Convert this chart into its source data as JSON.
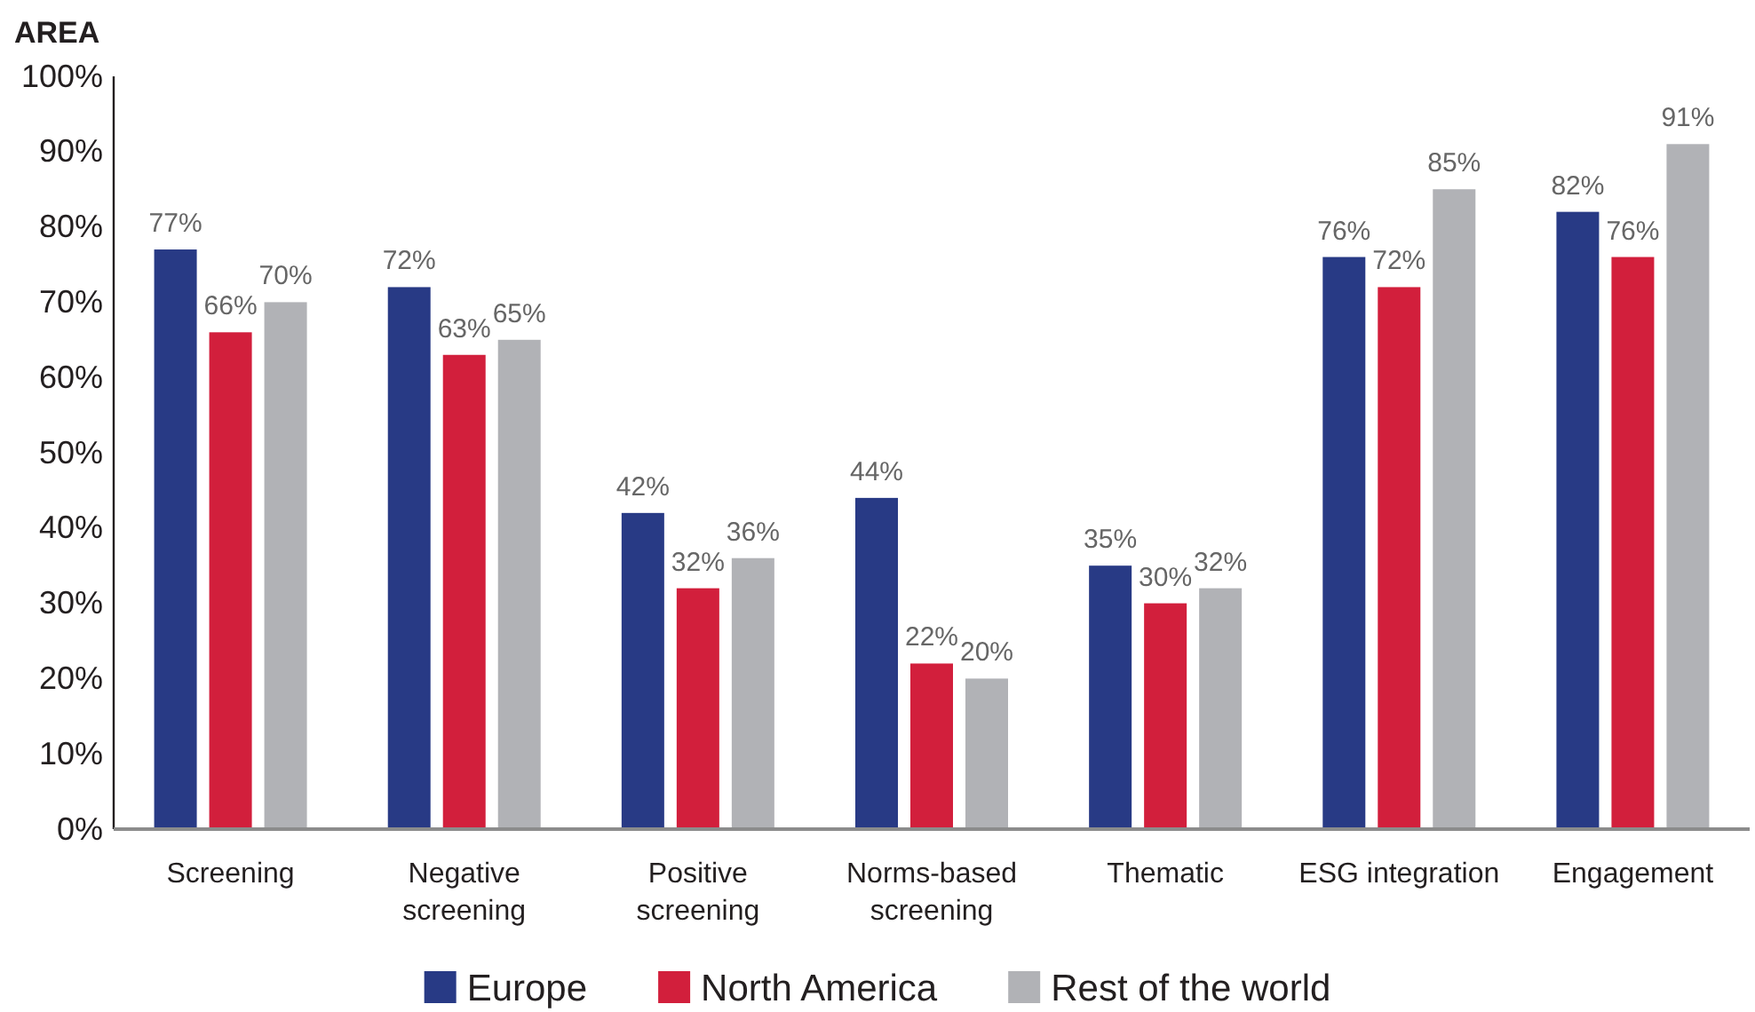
{
  "chart_data": {
    "type": "bar",
    "ylabel": "AREA",
    "categories": [
      "Screening",
      "Negative screening",
      "Positive screening",
      "Norms-based screening",
      "Thematic",
      "ESG integration",
      "Engagement"
    ],
    "series": [
      {
        "name": "Europe",
        "color": "#283a85",
        "values": [
          77,
          72,
          42,
          44,
          35,
          76,
          82
        ],
        "value_labels": [
          "77%",
          "72%",
          "42%",
          "44%",
          "35%",
          "76%",
          "82%"
        ]
      },
      {
        "name": "North America",
        "color": "#d21f3c",
        "values": [
          66,
          63,
          32,
          22,
          30,
          72,
          76
        ],
        "value_labels": [
          "66%",
          "63%",
          "32%",
          "22%",
          "30%",
          "72%",
          "76%"
        ]
      },
      {
        "name": "Rest of the world",
        "color": "#b1b2b6",
        "values": [
          70,
          65,
          36,
          20,
          32,
          85,
          91
        ],
        "value_labels": [
          "70%",
          "65%",
          "36%",
          "20%",
          "32%",
          "85%",
          "91%"
        ]
      }
    ],
    "ylim": [
      0,
      100
    ],
    "yticks": [
      {
        "value": 0,
        "label": "0%"
      },
      {
        "value": 10,
        "label": "10%"
      },
      {
        "value": 20,
        "label": "20%"
      },
      {
        "value": 30,
        "label": "30%"
      },
      {
        "value": 40,
        "label": "40%"
      },
      {
        "value": 50,
        "label": "50%"
      },
      {
        "value": 60,
        "label": "60%"
      },
      {
        "value": 70,
        "label": "70%"
      },
      {
        "value": 80,
        "label": "80%"
      },
      {
        "value": 90,
        "label": "90%"
      },
      {
        "value": 100,
        "label": "100%"
      }
    ],
    "legend": "bottom"
  }
}
